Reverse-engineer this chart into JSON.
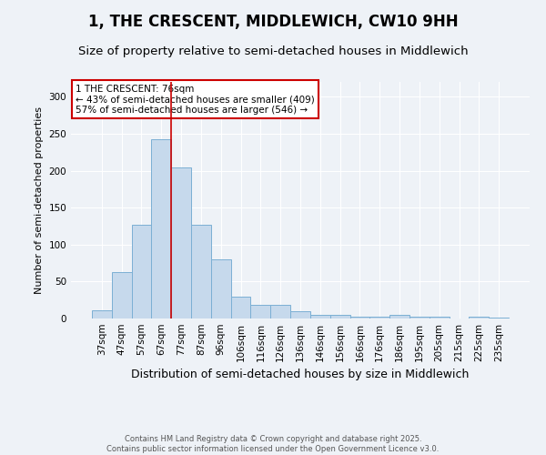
{
  "title": "1, THE CRESCENT, MIDDLEWICH, CW10 9HH",
  "subtitle": "Size of property relative to semi-detached houses in Middlewich",
  "xlabel": "Distribution of semi-detached houses by size in Middlewich",
  "ylabel": "Number of semi-detached properties",
  "categories": [
    "37sqm",
    "47sqm",
    "57sqm",
    "67sqm",
    "77sqm",
    "87sqm",
    "96sqm",
    "106sqm",
    "116sqm",
    "126sqm",
    "136sqm",
    "146sqm",
    "156sqm",
    "166sqm",
    "176sqm",
    "186sqm",
    "195sqm",
    "205sqm",
    "215sqm",
    "225sqm",
    "235sqm"
  ],
  "values": [
    11,
    63,
    127,
    242,
    204,
    127,
    80,
    30,
    18,
    18,
    10,
    5,
    5,
    3,
    3,
    5,
    3,
    3,
    0,
    2,
    1
  ],
  "bar_color": "#c6d9ec",
  "bar_edge_color": "#7bafd4",
  "vline_color": "#cc0000",
  "vline_pos": 3.5,
  "property_label": "1 THE CRESCENT: 76sqm",
  "smaller_text": "← 43% of semi-detached houses are smaller (409)",
  "larger_text": "57% of semi-detached houses are larger (546) →",
  "annotation_box_color": "#cc0000",
  "ylim": [
    0,
    320
  ],
  "yticks": [
    0,
    50,
    100,
    150,
    200,
    250,
    300
  ],
  "footer1": "Contains HM Land Registry data © Crown copyright and database right 2025.",
  "footer2": "Contains public sector information licensed under the Open Government Licence v3.0.",
  "background_color": "#eef2f7",
  "title_fontsize": 12,
  "subtitle_fontsize": 9.5,
  "bar_label_fontsize": 8,
  "xlabel_fontsize": 9,
  "ylabel_fontsize": 8,
  "tick_fontsize": 7.5,
  "footer_fontsize": 6,
  "annotation_fontsize": 7.5
}
